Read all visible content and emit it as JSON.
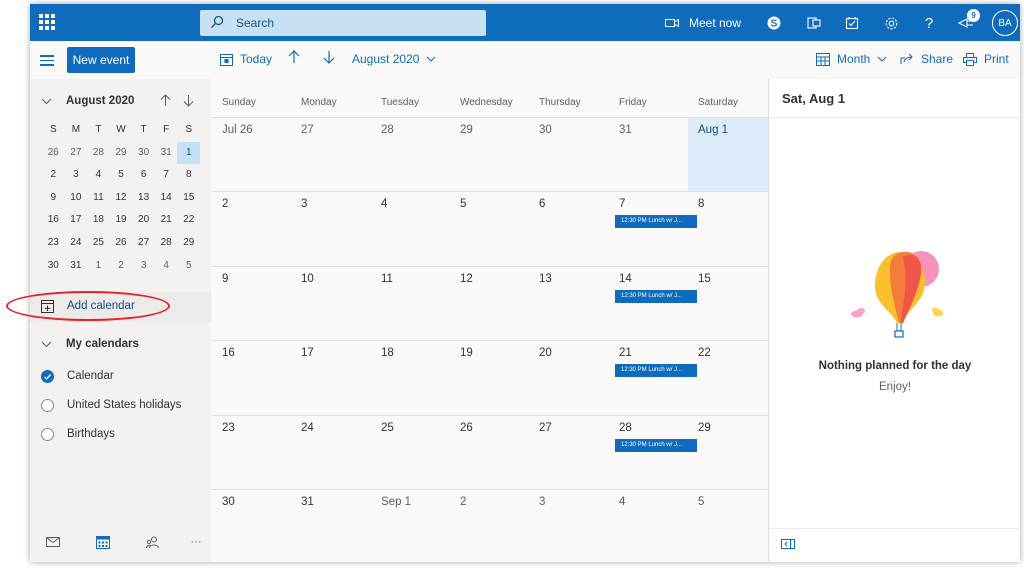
{
  "topbar": {
    "search_placeholder": "Search",
    "meet_now": "Meet now",
    "badge_count": "9",
    "avatar_initials": "BA"
  },
  "command_bar": {
    "new_event": "New event",
    "today": "Today",
    "month_selector": "August 2020",
    "view": "Month",
    "share": "Share",
    "print": "Print"
  },
  "sidebar": {
    "mini_calendar": {
      "title": "August 2020",
      "weekdays": [
        "S",
        "M",
        "T",
        "W",
        "T",
        "F",
        "S"
      ],
      "weeks": [
        [
          "26",
          "27",
          "28",
          "29",
          "30",
          "31",
          "1"
        ],
        [
          "2",
          "3",
          "4",
          "5",
          "6",
          "7",
          "8"
        ],
        [
          "9",
          "10",
          "11",
          "12",
          "13",
          "14",
          "15"
        ],
        [
          "16",
          "17",
          "18",
          "19",
          "20",
          "21",
          "22"
        ],
        [
          "23",
          "24",
          "25",
          "26",
          "27",
          "28",
          "29"
        ],
        [
          "30",
          "31",
          "1",
          "2",
          "3",
          "4",
          "5"
        ]
      ],
      "selected_day": "1"
    },
    "add_calendar": "Add calendar",
    "my_calendars_header": "My calendars",
    "calendars": [
      {
        "label": "Calendar",
        "checked": true
      },
      {
        "label": "United States holidays",
        "checked": false
      },
      {
        "label": "Birthdays",
        "checked": false
      }
    ],
    "more": "···"
  },
  "calendar": {
    "weekdays": [
      "Sunday",
      "Monday",
      "Tuesday",
      "Wednesday",
      "Thursday",
      "Friday",
      "Saturday"
    ],
    "weeks": [
      [
        "Jul 26",
        "27",
        "28",
        "29",
        "30",
        "31",
        "Aug 1"
      ],
      [
        "2",
        "3",
        "4",
        "5",
        "6",
        "7",
        "8"
      ],
      [
        "9",
        "10",
        "11",
        "12",
        "13",
        "14",
        "15"
      ],
      [
        "16",
        "17",
        "18",
        "19",
        "20",
        "21",
        "22"
      ],
      [
        "23",
        "24",
        "25",
        "26",
        "27",
        "28",
        "29"
      ],
      [
        "30",
        "31",
        "Sep 1",
        "2",
        "3",
        "4",
        "5"
      ]
    ],
    "events": [
      {
        "day": "7",
        "label": "12:30 PM Lunch w/ J..."
      },
      {
        "day": "14",
        "label": "12:30 PM Lunch w/ J..."
      },
      {
        "day": "21",
        "label": "12:30 PM Lunch w/ J..."
      },
      {
        "day": "28",
        "label": "12:30 PM Lunch w/ J..."
      }
    ]
  },
  "right_pane": {
    "date_title": "Sat, Aug 1",
    "empty_title": "Nothing planned for the day",
    "empty_subtitle": "Enjoy!"
  },
  "colors": {
    "brand_blue": "#0f6cbd",
    "selected_day_bg": "#deecf9",
    "annotation_red": "#e3222a"
  }
}
